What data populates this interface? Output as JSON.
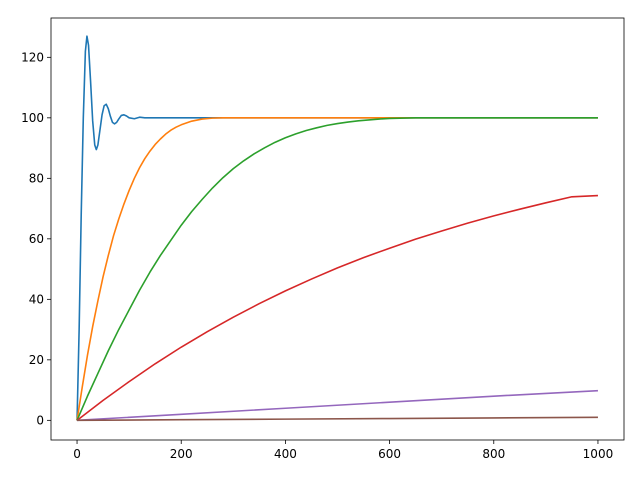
{
  "chart_data": {
    "type": "line",
    "title": "",
    "xlabel": "",
    "ylabel": "",
    "xlim": [
      -50,
      1050
    ],
    "ylim": [
      -6.5,
      133
    ],
    "xticks": [
      0,
      200,
      400,
      600,
      800,
      1000
    ],
    "yticks": [
      0,
      20,
      40,
      60,
      80,
      100,
      120
    ],
    "grid": false,
    "legend": "none",
    "series": [
      {
        "color": "#1f77b4",
        "points": [
          [
            0,
            0
          ],
          [
            4,
            30
          ],
          [
            8,
            68
          ],
          [
            12,
            100
          ],
          [
            16,
            122
          ],
          [
            19,
            127
          ],
          [
            22,
            124
          ],
          [
            26,
            112
          ],
          [
            30,
            99
          ],
          [
            34,
            91
          ],
          [
            37,
            89.5
          ],
          [
            40,
            91
          ],
          [
            44,
            96
          ],
          [
            48,
            101
          ],
          [
            52,
            104
          ],
          [
            56,
            104.5
          ],
          [
            60,
            103
          ],
          [
            64,
            100.5
          ],
          [
            68,
            98.5
          ],
          [
            72,
            98
          ],
          [
            76,
            98.5
          ],
          [
            80,
            99.6
          ],
          [
            85,
            100.8
          ],
          [
            90,
            101
          ],
          [
            95,
            100.6
          ],
          [
            100,
            100
          ],
          [
            110,
            99.7
          ],
          [
            120,
            100.2
          ],
          [
            130,
            100
          ],
          [
            150,
            100
          ],
          [
            200,
            100
          ],
          [
            400,
            100
          ],
          [
            600,
            100
          ],
          [
            800,
            100
          ],
          [
            1000,
            100
          ]
        ]
      },
      {
        "color": "#ff7f0e",
        "points": [
          [
            0,
            0
          ],
          [
            10,
            11
          ],
          [
            20,
            21.5
          ],
          [
            30,
            31
          ],
          [
            40,
            39.5
          ],
          [
            50,
            47.5
          ],
          [
            60,
            54.5
          ],
          [
            70,
            61
          ],
          [
            80,
            66.5
          ],
          [
            90,
            71.5
          ],
          [
            100,
            76
          ],
          [
            110,
            80
          ],
          [
            120,
            83.5
          ],
          [
            130,
            86.5
          ],
          [
            140,
            89
          ],
          [
            150,
            91.2
          ],
          [
            160,
            93
          ],
          [
            170,
            94.6
          ],
          [
            180,
            95.9
          ],
          [
            190,
            96.9
          ],
          [
            200,
            97.7
          ],
          [
            220,
            98.9
          ],
          [
            240,
            99.6
          ],
          [
            260,
            99.9
          ],
          [
            280,
            100
          ],
          [
            300,
            100
          ],
          [
            400,
            100
          ],
          [
            600,
            100
          ],
          [
            800,
            100
          ],
          [
            1000,
            100
          ]
        ]
      },
      {
        "color": "#2ca02c",
        "points": [
          [
            0,
            0
          ],
          [
            20,
            8
          ],
          [
            40,
            15.5
          ],
          [
            60,
            23
          ],
          [
            80,
            30
          ],
          [
            100,
            36.5
          ],
          [
            120,
            43
          ],
          [
            140,
            49
          ],
          [
            160,
            54.5
          ],
          [
            180,
            59.5
          ],
          [
            200,
            64.5
          ],
          [
            220,
            69
          ],
          [
            240,
            73
          ],
          [
            260,
            76.8
          ],
          [
            280,
            80.2
          ],
          [
            300,
            83.2
          ],
          [
            320,
            85.8
          ],
          [
            340,
            88.1
          ],
          [
            360,
            90.1
          ],
          [
            380,
            91.9
          ],
          [
            400,
            93.4
          ],
          [
            420,
            94.7
          ],
          [
            440,
            95.8
          ],
          [
            460,
            96.7
          ],
          [
            480,
            97.5
          ],
          [
            500,
            98.1
          ],
          [
            520,
            98.6
          ],
          [
            540,
            99
          ],
          [
            560,
            99.3
          ],
          [
            580,
            99.6
          ],
          [
            600,
            99.8
          ],
          [
            650,
            100
          ],
          [
            700,
            100
          ],
          [
            800,
            100
          ],
          [
            1000,
            100
          ]
        ]
      },
      {
        "color": "#d62728",
        "points": [
          [
            0,
            0
          ],
          [
            50,
            6.6
          ],
          [
            100,
            12.8
          ],
          [
            150,
            18.7
          ],
          [
            200,
            24.2
          ],
          [
            250,
            29.3
          ],
          [
            300,
            34.1
          ],
          [
            350,
            38.6
          ],
          [
            400,
            42.8
          ],
          [
            450,
            46.7
          ],
          [
            500,
            50.4
          ],
          [
            550,
            53.8
          ],
          [
            600,
            56.9
          ],
          [
            650,
            59.9
          ],
          [
            700,
            62.6
          ],
          [
            750,
            65.2
          ],
          [
            800,
            67.6
          ],
          [
            850,
            69.8
          ],
          [
            900,
            71.9
          ],
          [
            950,
            73.9
          ],
          [
            1000,
            74.3
          ]
        ]
      },
      {
        "color": "#9467bd",
        "points": [
          [
            0,
            0
          ],
          [
            200,
            2
          ],
          [
            400,
            4
          ],
          [
            600,
            6
          ],
          [
            800,
            8
          ],
          [
            1000,
            9.8
          ]
        ]
      },
      {
        "color": "#8c564b",
        "points": [
          [
            0,
            0
          ],
          [
            200,
            0.2
          ],
          [
            400,
            0.4
          ],
          [
            600,
            0.6
          ],
          [
            800,
            0.8
          ],
          [
            1000,
            1
          ]
        ]
      }
    ]
  }
}
